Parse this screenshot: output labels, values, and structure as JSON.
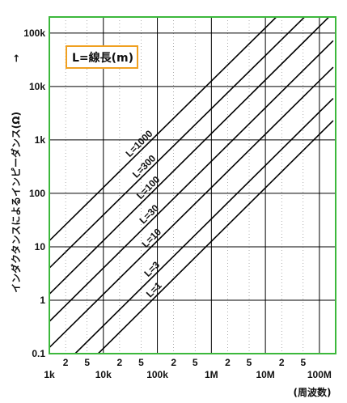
{
  "colors": {
    "frame": "#3cb83c",
    "legend_border": "#f0a020",
    "line": "#000000",
    "grid": "#000000"
  },
  "chart_data": {
    "type": "line",
    "title": "",
    "legend_box": "L=線長(m)",
    "ylabel": "インダクタンスによるインピーダンス(Ω)",
    "ylabel_arrow": "→",
    "xlabel": "(周波数)",
    "x_scale": "log",
    "y_scale": "log",
    "xlim": [
      1000,
      200000000
    ],
    "ylim": [
      0.1,
      200000
    ],
    "grid": "on",
    "x_ticks": [
      {
        "value": 1000,
        "label": "1k"
      },
      {
        "value": 10000,
        "label": "10k"
      },
      {
        "value": 100000,
        "label": "100k"
      },
      {
        "value": 1000000,
        "label": "1M"
      },
      {
        "value": 10000000,
        "label": "10M"
      },
      {
        "value": 100000000,
        "label": "100M"
      }
    ],
    "x_minor_ticks": [
      {
        "value": 2000,
        "label": "2"
      },
      {
        "value": 5000,
        "label": "5"
      },
      {
        "value": 20000,
        "label": "2"
      },
      {
        "value": 50000,
        "label": "5"
      },
      {
        "value": 200000,
        "label": "2"
      },
      {
        "value": 500000,
        "label": "5"
      },
      {
        "value": 2000000,
        "label": "2"
      },
      {
        "value": 5000000,
        "label": "5"
      },
      {
        "value": 20000000,
        "label": "2"
      },
      {
        "value": 50000000,
        "label": "5"
      }
    ],
    "y_ticks": [
      {
        "value": 0.1,
        "label": "0.1"
      },
      {
        "value": 1,
        "label": "1"
      },
      {
        "value": 10,
        "label": "10"
      },
      {
        "value": 100,
        "label": "100"
      },
      {
        "value": 1000,
        "label": "1k"
      },
      {
        "value": 10000,
        "label": "10k"
      },
      {
        "value": 100000,
        "label": "100k"
      }
    ],
    "series": [
      {
        "name": "L=1000",
        "points": [
          [
            1000,
            13
          ],
          [
            36000000,
            450000
          ]
        ]
      },
      {
        "name": "L=300",
        "points": [
          [
            1000,
            4
          ],
          [
            120000000,
            450000
          ]
        ]
      },
      {
        "name": "L=100",
        "points": [
          [
            1000,
            1.3
          ],
          [
            180000000,
            240000
          ]
        ]
      },
      {
        "name": "L=30",
        "points": [
          [
            1000,
            0.4
          ],
          [
            180000000,
            72000
          ]
        ]
      },
      {
        "name": "L=10",
        "points": [
          [
            1000,
            0.13
          ],
          [
            180000000,
            23000
          ]
        ]
      },
      {
        "name": "L=3",
        "points": [
          [
            3000,
            0.1
          ],
          [
            180000000,
            6000
          ]
        ]
      },
      {
        "name": "L=1",
        "points": [
          [
            8000,
            0.1
          ],
          [
            180000000,
            2300
          ]
        ]
      }
    ]
  }
}
